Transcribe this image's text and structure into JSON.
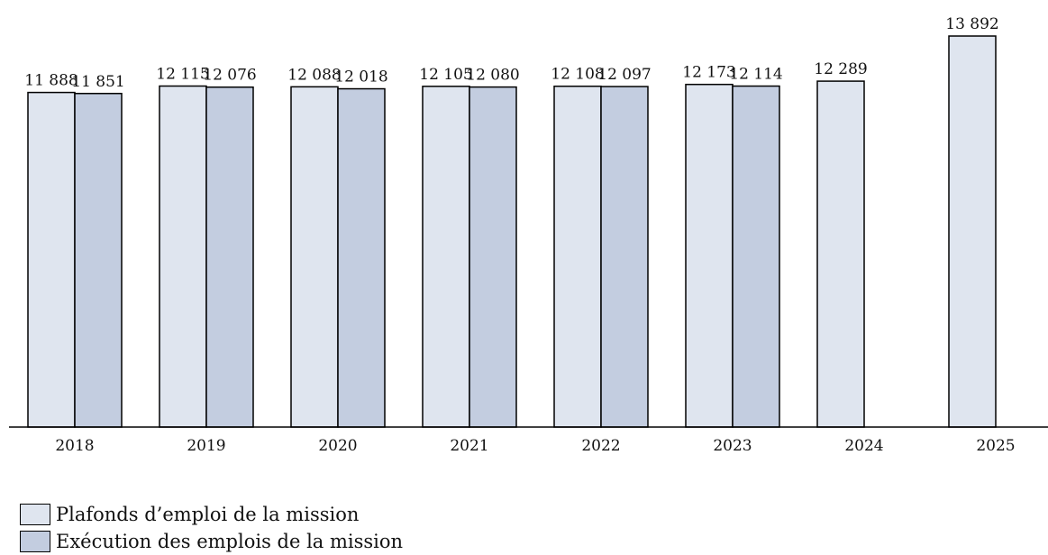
{
  "chart_data": {
    "type": "bar",
    "categories": [
      "2018",
      "2019",
      "2020",
      "2021",
      "2022",
      "2023",
      "2024",
      "2025"
    ],
    "series": [
      {
        "name": "Plafonds d’emploi de la mission",
        "values": [
          11888,
          12115,
          12088,
          12105,
          12108,
          12173,
          12289,
          13892
        ],
        "labels": [
          "11 888",
          "12 115",
          "12 088",
          "12 105",
          "12 108",
          "12 173",
          "12 289",
          "13 892"
        ],
        "color": "#dfe5ef"
      },
      {
        "name": "Exécution des emplois de la mission",
        "values": [
          11851,
          12076,
          12018,
          12080,
          12097,
          12114,
          null,
          null
        ],
        "labels": [
          "11 851",
          "12 076",
          "12 018",
          "12 080",
          "12 097",
          "12 114",
          "",
          ""
        ],
        "color": "#c3cde0"
      }
    ],
    "ylim": [
      0,
      13892
    ],
    "grid": false,
    "legend_position": "bottom-left"
  }
}
